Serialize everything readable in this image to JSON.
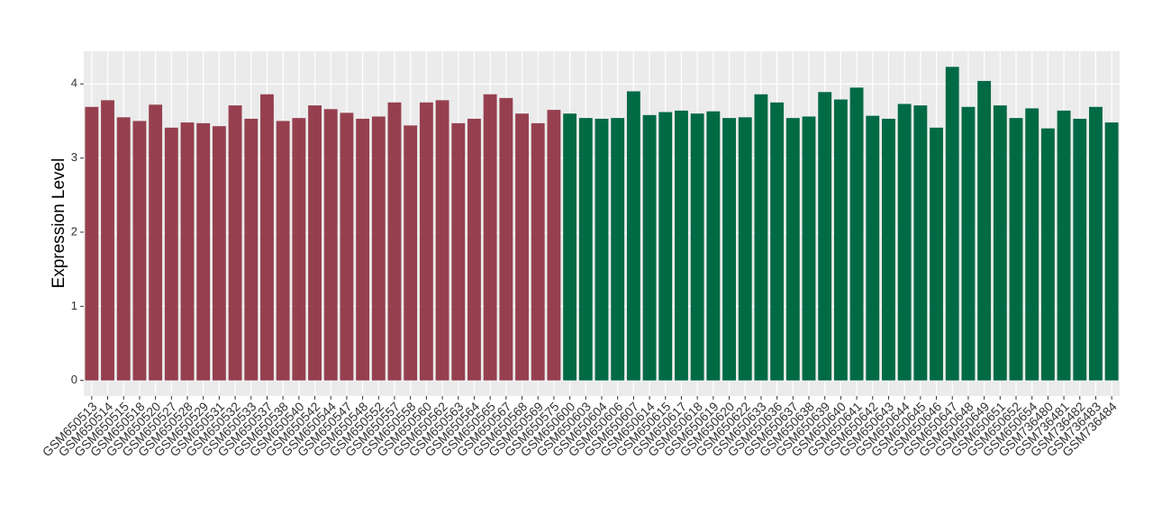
{
  "chart_data": {
    "type": "bar",
    "y_label": "Expression Level",
    "categories": [
      "GSM650513",
      "GSM650514",
      "GSM650515",
      "GSM650518",
      "GSM650520",
      "GSM650527",
      "GSM650528",
      "GSM650529",
      "GSM650531",
      "GSM650532",
      "GSM650533",
      "GSM650537",
      "GSM650538",
      "GSM650540",
      "GSM650542",
      "GSM650544",
      "GSM650547",
      "GSM650548",
      "GSM650552",
      "GSM650557",
      "GSM650558",
      "GSM650560",
      "GSM650562",
      "GSM650563",
      "GSM650564",
      "GSM650565",
      "GSM650567",
      "GSM650568",
      "GSM650569",
      "GSM650575",
      "GSM650600",
      "GSM650603",
      "GSM650604",
      "GSM650606",
      "GSM650607",
      "GSM650614",
      "GSM650615",
      "GSM650617",
      "GSM650618",
      "GSM650619",
      "GSM650620",
      "GSM650622",
      "GSM650633",
      "GSM650636",
      "GSM650637",
      "GSM650638",
      "GSM650639",
      "GSM650640",
      "GSM650641",
      "GSM650642",
      "GSM650643",
      "GSM650644",
      "GSM650645",
      "GSM650646",
      "GSM650647",
      "GSM650648",
      "GSM650649",
      "GSM650651",
      "GSM650652",
      "GSM650654",
      "GSM736480",
      "GSM736481",
      "GSM736482",
      "GSM736483",
      "GSM736484"
    ],
    "values": [
      3.69,
      3.78,
      3.55,
      3.5,
      3.72,
      3.41,
      3.48,
      3.47,
      3.43,
      3.71,
      3.53,
      3.86,
      3.5,
      3.54,
      3.71,
      3.66,
      3.61,
      3.53,
      3.56,
      3.75,
      3.44,
      3.75,
      3.78,
      3.47,
      3.53,
      3.86,
      3.81,
      3.6,
      3.47,
      3.65,
      3.6,
      3.54,
      3.53,
      3.54,
      3.9,
      3.58,
      3.62,
      3.64,
      3.6,
      3.63,
      3.54,
      3.55,
      3.86,
      3.75,
      3.54,
      3.56,
      3.89,
      3.79,
      3.95,
      3.57,
      3.53,
      3.73,
      3.71,
      3.41,
      4.23,
      3.69,
      4.04,
      3.71,
      3.54,
      3.67,
      3.4,
      3.64,
      3.53,
      3.69,
      3.48
    ],
    "colors": [
      "#96404f",
      "#96404f",
      "#96404f",
      "#96404f",
      "#96404f",
      "#96404f",
      "#96404f",
      "#96404f",
      "#96404f",
      "#96404f",
      "#96404f",
      "#96404f",
      "#96404f",
      "#96404f",
      "#96404f",
      "#96404f",
      "#96404f",
      "#96404f",
      "#96404f",
      "#96404f",
      "#96404f",
      "#96404f",
      "#96404f",
      "#96404f",
      "#96404f",
      "#96404f",
      "#96404f",
      "#96404f",
      "#96404f",
      "#96404f",
      "#006a45",
      "#006a45",
      "#006a45",
      "#006a45",
      "#006a45",
      "#006a45",
      "#006a45",
      "#006a45",
      "#006a45",
      "#006a45",
      "#006a45",
      "#006a45",
      "#006a45",
      "#006a45",
      "#006a45",
      "#006a45",
      "#006a45",
      "#006a45",
      "#006a45",
      "#006a45",
      "#006a45",
      "#006a45",
      "#006a45",
      "#006a45",
      "#006a45",
      "#006a45",
      "#006a45",
      "#006a45",
      "#006a45",
      "#006a45",
      "#006a45",
      "#006a45",
      "#006a45",
      "#006a45",
      "#006a45"
    ],
    "ylim": [
      -0.21,
      4.44
    ],
    "yticks": [
      0,
      1,
      2,
      3,
      4
    ],
    "grid": true
  }
}
